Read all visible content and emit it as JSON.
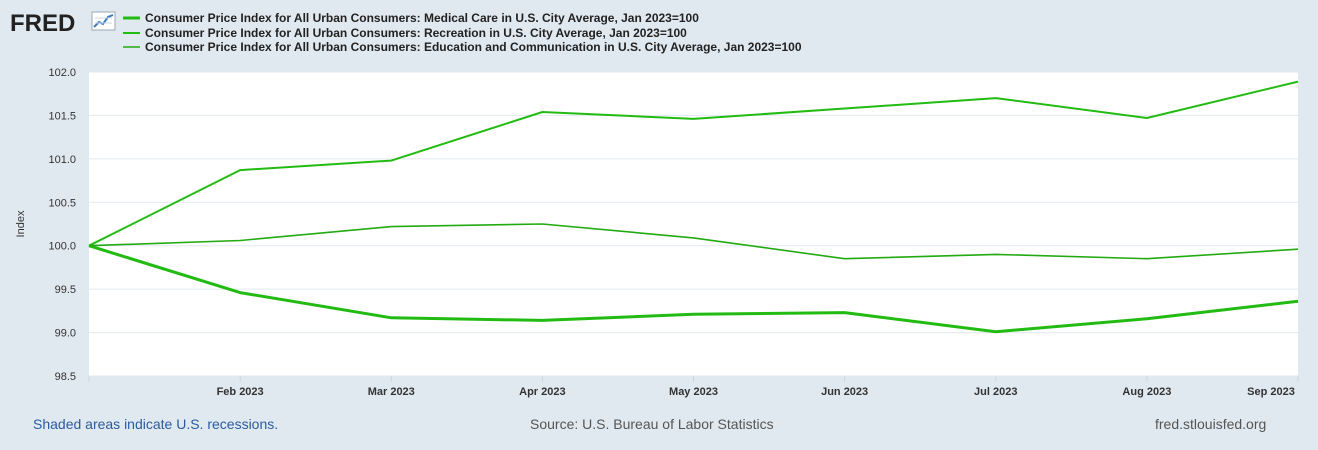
{
  "branding": {
    "logo_text": "FRED"
  },
  "colors": {
    "background": "#e1e9f0",
    "plot_bg": "#ffffff",
    "grid": "#e1e9f0",
    "series_line": "#22bb11"
  },
  "chart_data": {
    "type": "line",
    "title": "",
    "xlabel": "",
    "ylabel": "Index",
    "ylim": [
      98.5,
      102.0
    ],
    "yticks": [
      98.5,
      99.0,
      99.5,
      100.0,
      100.5,
      101.0,
      101.5,
      102.0
    ],
    "ytick_labels": [
      "98.5",
      "99.0",
      "99.5",
      "100.0",
      "100.5",
      "101.0",
      "101.5",
      "102.0"
    ],
    "x": [
      "Jan 2023",
      "Feb 2023",
      "Mar 2023",
      "Apr 2023",
      "May 2023",
      "Jun 2023",
      "Jul 2023",
      "Aug 2023",
      "Sep 2023"
    ],
    "xtick_labels": [
      "",
      "Feb 2023",
      "Mar 2023",
      "Apr 2023",
      "May 2023",
      "Jun 2023",
      "Jul 2023",
      "Aug 2023",
      "Sep 2023"
    ],
    "grid": true,
    "legend_position": "top",
    "series": [
      {
        "name": "Consumer Price Index for All Urban Consumers: Medical Care in U.S. City Average, Jan 2023=100",
        "values": [
          100.0,
          99.46,
          99.17,
          99.14,
          99.21,
          99.23,
          99.01,
          99.16,
          99.36
        ],
        "color": "#22bb11",
        "width": "thick"
      },
      {
        "name": "Consumer Price Index for All Urban Consumers: Recreation in U.S. City Average, Jan 2023=100",
        "values": [
          100.0,
          100.87,
          100.98,
          101.54,
          101.46,
          101.58,
          101.7,
          101.47,
          101.89
        ],
        "color": "#22bb11",
        "width": "medium"
      },
      {
        "name": "Consumer Price Index for All Urban Consumers: Education and Communication in U.S. City Average, Jan 2023=100",
        "values": [
          100.0,
          100.06,
          100.22,
          100.25,
          100.09,
          99.85,
          99.9,
          99.85,
          99.96
        ],
        "color": "#22aa11",
        "width": "thin"
      }
    ]
  },
  "footer": {
    "recession_note": "Shaded areas indicate U.S. recessions.",
    "source": "Source: U.S. Bureau of Labor Statistics",
    "site": "fred.stlouisfed.org"
  }
}
